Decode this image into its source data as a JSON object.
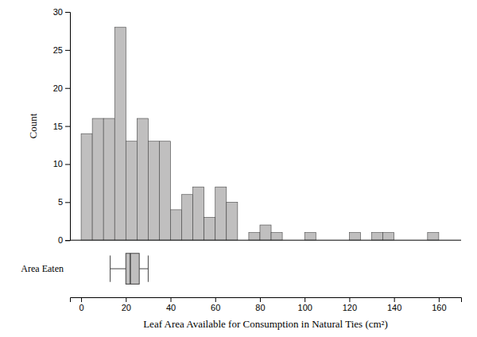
{
  "chart_data": [
    {
      "type": "histogram",
      "ylabel": "Count",
      "bins": [
        0,
        5,
        10,
        15,
        20,
        25,
        30,
        35,
        40,
        45,
        50,
        55,
        60,
        65,
        70,
        75,
        80,
        85,
        90,
        95,
        100,
        105,
        110,
        115,
        120,
        125,
        130,
        135,
        140,
        145,
        150,
        155,
        160,
        165
      ],
      "values": [
        14,
        16,
        16,
        28,
        13,
        16,
        13,
        13,
        4,
        6,
        7,
        3,
        7,
        5,
        0,
        1,
        2,
        1,
        0,
        0,
        1,
        0,
        0,
        0,
        1,
        0,
        1,
        1,
        0,
        0,
        0,
        1,
        0
      ],
      "color": "#c0bfbf",
      "xlim": [
        -5,
        170
      ],
      "ylim": [
        0,
        30
      ],
      "yticks": [
        0,
        5,
        10,
        15,
        20,
        25,
        30
      ],
      "tick_labels": "y"
    },
    {
      "type": "box",
      "xlabel": "Leaf Area Available for Consumption in Natural Ties (cm²)",
      "categories": [
        "Area Eaten"
      ],
      "whisker_low": 13,
      "q1": 20,
      "median": 22,
      "q3": 26,
      "whisker_high": 30,
      "color": "#c0bfbf",
      "xlim": [
        -5,
        170
      ],
      "xticks": [
        0,
        20,
        40,
        60,
        80,
        100,
        120,
        140,
        160
      ],
      "tick_labels": "x"
    }
  ]
}
